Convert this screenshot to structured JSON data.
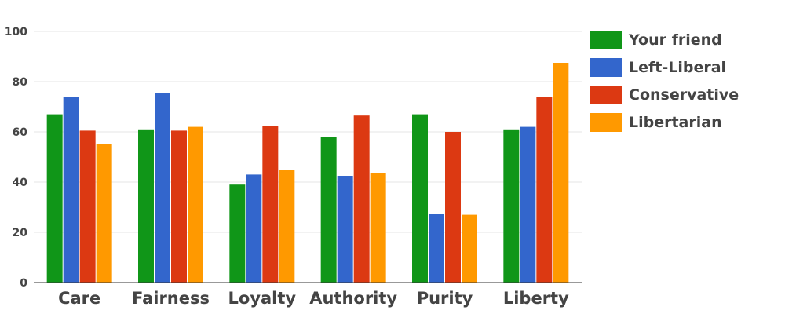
{
  "chart_data": {
    "type": "bar",
    "categories": [
      "Care",
      "Fairness",
      "Loyalty",
      "Authority",
      "Purity",
      "Liberty"
    ],
    "series": [
      {
        "name": "Your friend",
        "color": "#109618",
        "values": [
          67,
          61,
          39,
          58,
          67,
          61
        ]
      },
      {
        "name": "Left-Liberal",
        "color": "#3366cc",
        "values": [
          74,
          75.5,
          43,
          42.5,
          27.5,
          62
        ]
      },
      {
        "name": "Conservative",
        "color": "#dc3912",
        "values": [
          60.5,
          60.5,
          62.5,
          66.5,
          60,
          74
        ]
      },
      {
        "name": "Libertarian",
        "color": "#ff9900",
        "values": [
          55,
          62,
          45,
          43.5,
          27,
          87.5
        ]
      }
    ],
    "ylim": [
      0,
      100
    ],
    "yticks": [
      "0",
      "20",
      "40",
      "60",
      "80",
      "100"
    ],
    "grid": true,
    "legend_position": "right",
    "title": "",
    "xlabel": "",
    "ylabel": ""
  }
}
